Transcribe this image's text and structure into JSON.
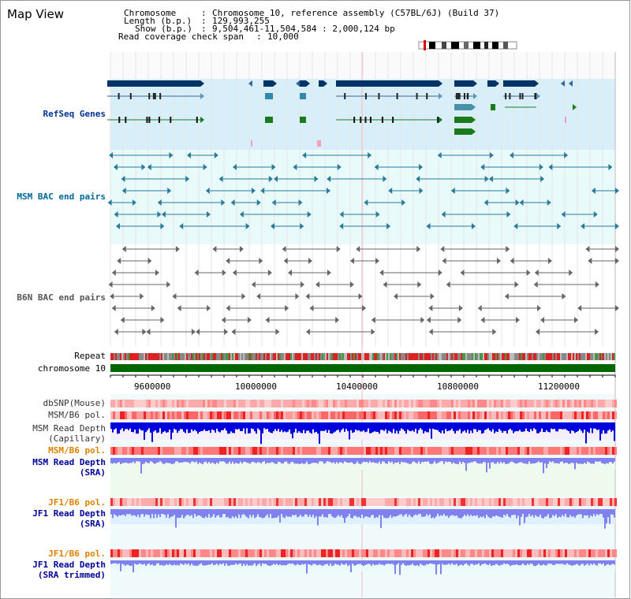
{
  "page_title": "Map View",
  "info": {
    "chromosome": {
      "label": "Chromosome",
      "value": "Chromosome 10, reference assembly (C57BL/6J) (Build 37)"
    },
    "length": {
      "label": "Length (b.p.)",
      "value": "129,993,255"
    },
    "show": {
      "label": "Show (b.p.)",
      "value": "9,504,461-11,504,584 : 2,000,124 bp"
    },
    "coverage": {
      "label": "Read coverage check span",
      "value": "10,000"
    }
  },
  "tracks": {
    "refseq": {
      "label": "RefSeq Genes",
      "color": "#003399"
    },
    "msm_bac": {
      "label": "MSM BAC end pairs",
      "color": "#006699"
    },
    "b6n_bac": {
      "label": "B6N BAC end pairs",
      "color": "#555555"
    },
    "repeat": {
      "label": "Repeat"
    },
    "chromosome": {
      "label": "chromosome 10"
    },
    "dbsnp": {
      "label": "dbSNP(Mouse)"
    },
    "msm_b6_pol_1": {
      "label": "MSM/B6 pol."
    },
    "msm_read_depth_cap": {
      "line1": "MSM Read Depth",
      "line2": "(Capillary)"
    },
    "msm_b6_pol_2": {
      "label": "MSM/B6 pol.",
      "color": "#e08000"
    },
    "msm_read_depth_sra": {
      "line1": "MSM Read Depth",
      "line2": "(SRA)",
      "color": "#000099"
    },
    "jf1_b6_pol_1": {
      "label": "JF1/B6 pol.",
      "color": "#e08000"
    },
    "jf1_read_depth_sra": {
      "line1": "JF1 Read Depth",
      "line2": "(SRA)",
      "color": "#000099"
    },
    "jf1_b6_pol_2": {
      "label": "JF1/B6 pol.",
      "color": "#e08000"
    },
    "jf1_read_depth_trim": {
      "line1": "JF1 Read Depth",
      "line2": "(SRA trimmed)",
      "color": "#000099"
    }
  },
  "axis": {
    "start_bp": 9504461,
    "end_bp": 11504584,
    "ticks": [
      "9600000",
      "10000000",
      "10400000",
      "10800000",
      "11200000"
    ]
  },
  "colors": {
    "refseq_bg": "#d8eef8",
    "bac_bg": "#e8fafa",
    "chrom_bar": "#006600",
    "depth_blue": "#0000dd",
    "depth_light": "#8080ee",
    "pol_red": "#ee2222"
  }
}
